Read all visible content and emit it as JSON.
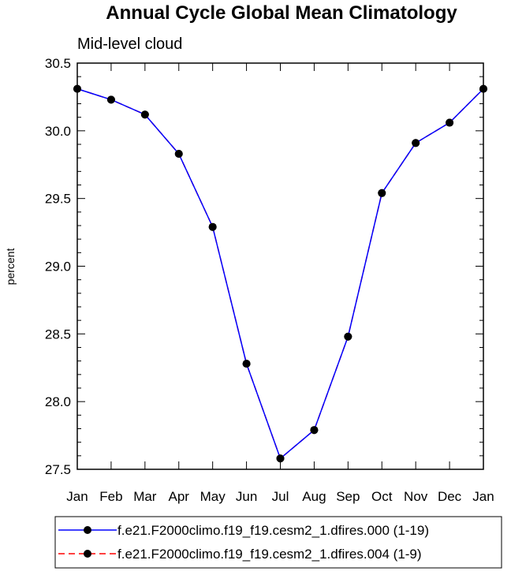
{
  "chart_data": {
    "type": "line",
    "title": "Annual Cycle Global Mean Climatology",
    "subtitle": "Mid-level cloud",
    "xlabel": "",
    "ylabel": "percent",
    "categories": [
      "Jan",
      "Feb",
      "Mar",
      "Apr",
      "May",
      "Jun",
      "Jul",
      "Aug",
      "Sep",
      "Oct",
      "Nov",
      "Dec",
      "Jan"
    ],
    "ylim": [
      27.5,
      30.5
    ],
    "yticks": [
      "27.5",
      "28.0",
      "28.5",
      "29.0",
      "29.5",
      "30.0",
      "30.5"
    ],
    "grid": false,
    "legend_position": "bottom",
    "series": [
      {
        "name": "f.e21.F2000climo.f19_f19.cesm2_1.dfires.000 (1-19)",
        "color": "#0000ff",
        "line_style": "solid",
        "values": [
          30.31,
          30.23,
          30.12,
          29.83,
          29.29,
          28.28,
          27.58,
          27.79,
          28.48,
          29.54,
          29.91,
          30.06,
          30.31
        ]
      },
      {
        "name": "f.e21.F2000climo.f19_f19.cesm2_1.dfires.004 (1-9)",
        "color": "#ff0000",
        "line_style": "dashed",
        "values": [
          30.31,
          30.23,
          30.12,
          29.83,
          29.29,
          28.28,
          27.58,
          27.79,
          28.48,
          29.54,
          29.91,
          30.06,
          30.31
        ]
      }
    ]
  }
}
